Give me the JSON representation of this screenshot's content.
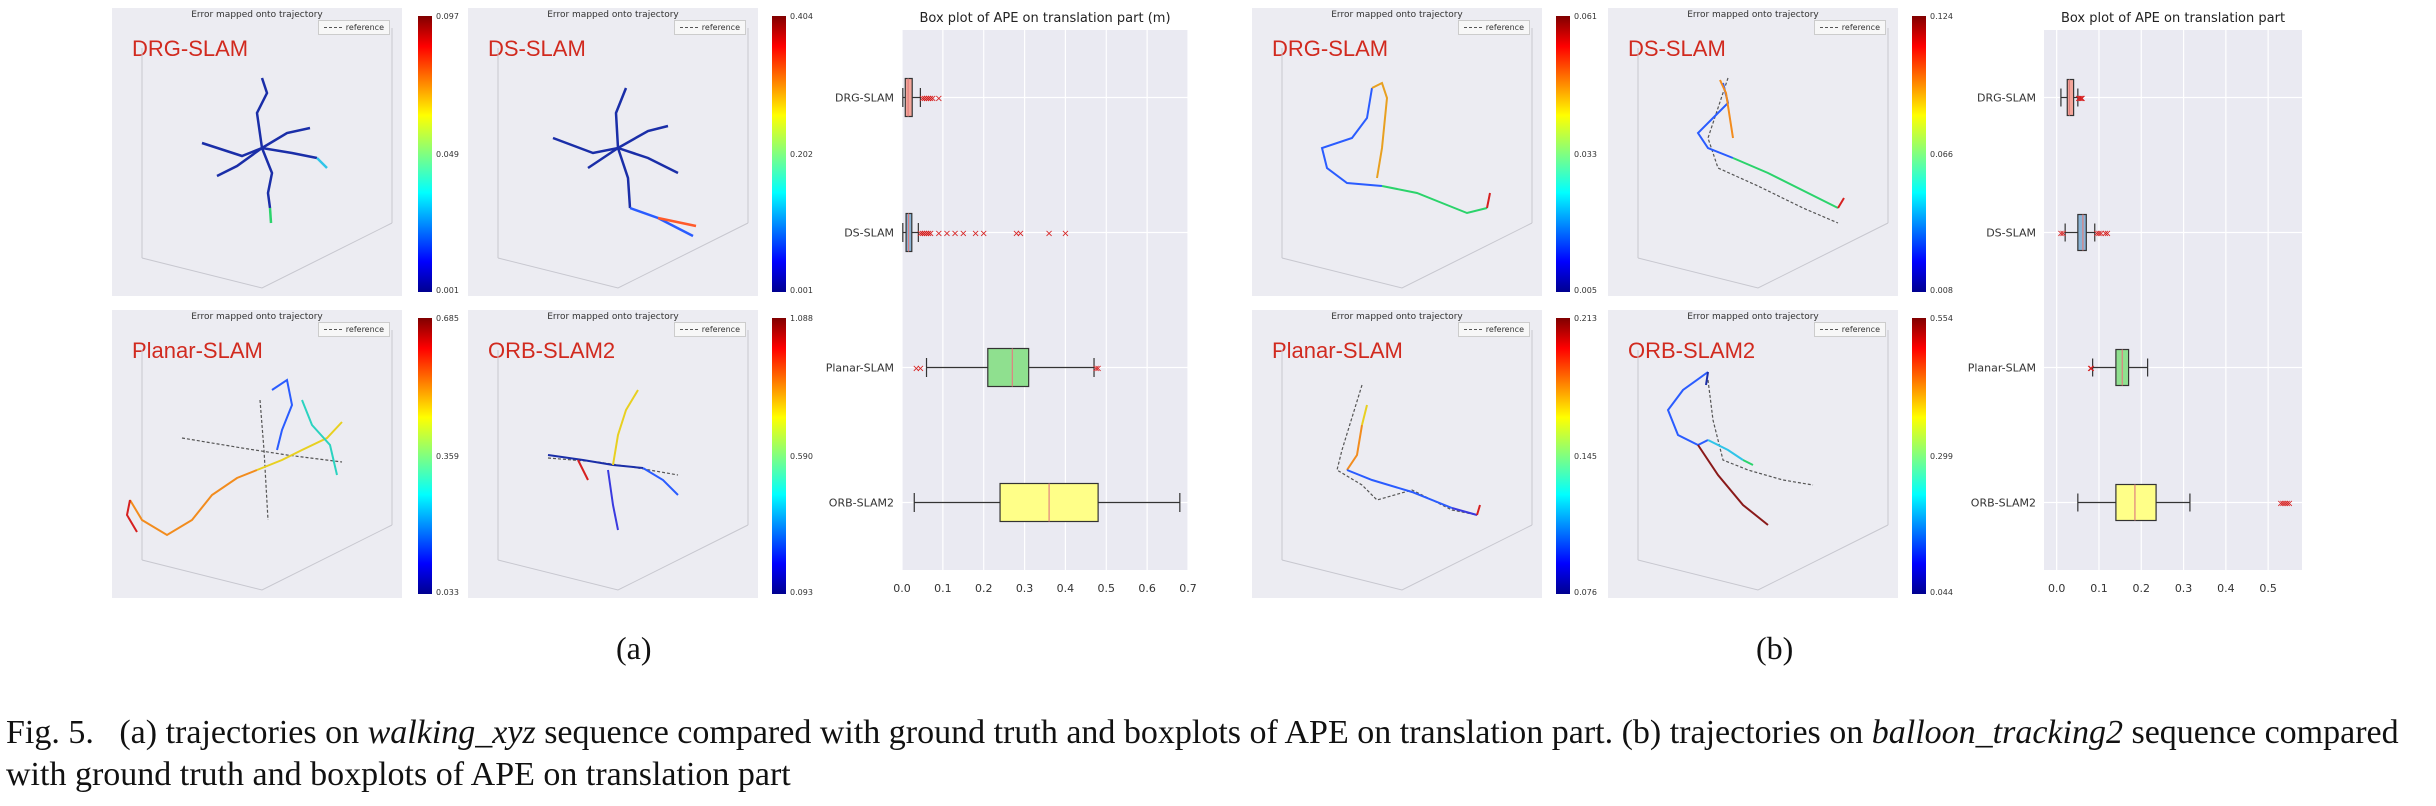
{
  "figure": {
    "panel_title": "Error mapped onto trajectory",
    "legend_label": "reference",
    "boxplot_title_a": "Box plot of APE on translation part (m)",
    "boxplot_title_b": "Box plot of APE on translation part",
    "sub_a": "(a)",
    "sub_b": "(b)",
    "panels_a": [
      {
        "label": "DRG-SLAM",
        "cb_max": "0.097",
        "cb_mid": "0.049",
        "cb_min": "0.001"
      },
      {
        "label": "DS-SLAM",
        "cb_max": "0.404",
        "cb_mid": "0.202",
        "cb_min": "0.001"
      },
      {
        "label": "Planar-SLAM",
        "cb_max": "0.685",
        "cb_mid": "0.359",
        "cb_min": "0.033"
      },
      {
        "label": "ORB-SLAM2",
        "cb_max": "1.088",
        "cb_mid": "0.590",
        "cb_min": "0.093"
      }
    ],
    "panels_b": [
      {
        "label": "DRG-SLAM",
        "cb_max": "0.061",
        "cb_mid": "0.033",
        "cb_min": "0.005"
      },
      {
        "label": "DS-SLAM",
        "cb_max": "0.124",
        "cb_mid": "0.066",
        "cb_min": "0.008"
      },
      {
        "label": "Planar-SLAM",
        "cb_max": "0.213",
        "cb_mid": "0.145",
        "cb_min": "0.076"
      },
      {
        "label": "ORB-SLAM2",
        "cb_max": "0.554",
        "cb_mid": "0.299",
        "cb_min": "0.044"
      }
    ]
  },
  "caption": {
    "fig_label": "Fig. 5.",
    "part1": "(a) trajectories on",
    "seq_a": "walking_xyz",
    "part2": "sequence compared with ground truth and boxplots of APE on translation part. (b) trajectories on",
    "seq_b": "balloon_tracking2",
    "part3": "sequence compared with ground truth and boxplots of APE on translation part"
  },
  "chart_data": [
    {
      "type": "boxplot",
      "title": "Box plot of APE on translation part (m)",
      "categories": [
        "DRG-SLAM",
        "DS-SLAM",
        "Planar-SLAM",
        "ORB-SLAM2"
      ],
      "colors": [
        "#f4a59a",
        "#8ab4d6",
        "#8fe08f",
        "#ffff88"
      ],
      "xlim": [
        0,
        0.7
      ],
      "xticks": [
        "0.0",
        "0.1",
        "0.2",
        "0.3",
        "0.4",
        "0.5",
        "0.6",
        "0.7"
      ],
      "boxes": [
        {
          "whislo": 0.002,
          "q1": 0.008,
          "med": 0.015,
          "q3": 0.025,
          "whishi": 0.045,
          "fliers": [
            0.05,
            0.055,
            0.06,
            0.065,
            0.07,
            0.075,
            0.09
          ]
        },
        {
          "whislo": 0.002,
          "q1": 0.01,
          "med": 0.016,
          "q3": 0.024,
          "whishi": 0.04,
          "fliers": [
            0.045,
            0.05,
            0.055,
            0.06,
            0.065,
            0.07,
            0.09,
            0.11,
            0.13,
            0.15,
            0.18,
            0.2,
            0.28,
            0.29,
            0.36,
            0.4
          ]
        },
        {
          "whislo": 0.06,
          "q1": 0.21,
          "med": 0.27,
          "q3": 0.31,
          "whishi": 0.47,
          "fliers": [
            0.035,
            0.045,
            0.475,
            0.48
          ]
        },
        {
          "whislo": 0.03,
          "q1": 0.24,
          "med": 0.36,
          "q3": 0.48,
          "whishi": 0.68,
          "fliers": []
        }
      ]
    },
    {
      "type": "boxplot",
      "title": "Box plot of APE on translation part",
      "categories": [
        "DRG-SLAM",
        "DS-SLAM",
        "Planar-SLAM",
        "ORB-SLAM2"
      ],
      "colors": [
        "#f4a59a",
        "#8ab4d6",
        "#8fe08f",
        "#ffff88"
      ],
      "xlim": [
        -0.03,
        0.58
      ],
      "xticks": [
        "0.0",
        "0.1",
        "0.2",
        "0.3",
        "0.4",
        "0.5"
      ],
      "boxes": [
        {
          "whislo": 0.01,
          "q1": 0.025,
          "med": 0.03,
          "q3": 0.04,
          "whishi": 0.05,
          "fliers": [
            0.052,
            0.055,
            0.058,
            0.06
          ]
        },
        {
          "whislo": 0.02,
          "q1": 0.05,
          "med": 0.062,
          "q3": 0.07,
          "whishi": 0.09,
          "fliers": [
            0.01,
            0.015,
            0.095,
            0.1,
            0.105,
            0.115,
            0.12
          ]
        },
        {
          "whislo": 0.085,
          "q1": 0.14,
          "med": 0.155,
          "q3": 0.17,
          "whishi": 0.215,
          "fliers": [
            0.08,
            0.082
          ]
        },
        {
          "whislo": 0.05,
          "q1": 0.14,
          "med": 0.185,
          "q3": 0.235,
          "whishi": 0.315,
          "fliers": [
            0.53,
            0.535,
            0.54,
            0.545,
            0.55
          ]
        }
      ]
    }
  ]
}
